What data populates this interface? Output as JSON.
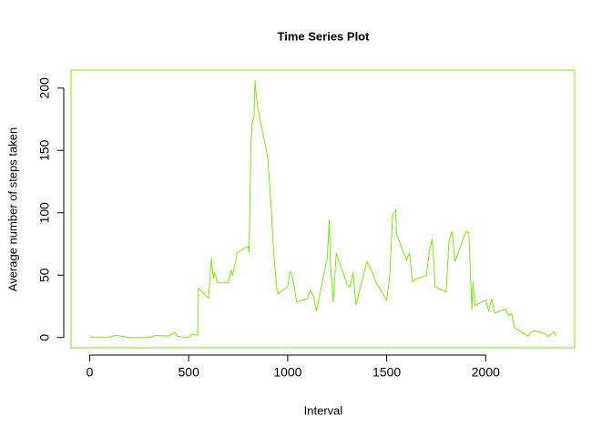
{
  "chart_data": {
    "type": "line",
    "title": "Time Series Plot",
    "x_label": "Interval",
    "y_label": "Average number of steps taken",
    "color": "#76EE00",
    "x": [
      0,
      10,
      20,
      30,
      40,
      55,
      100,
      130,
      200,
      230,
      300,
      330,
      400,
      430,
      445,
      500,
      515,
      530,
      545,
      550,
      600,
      610,
      615,
      625,
      630,
      645,
      700,
      715,
      720,
      730,
      745,
      800,
      805,
      815,
      820,
      830,
      835,
      840,
      850,
      900,
      915,
      930,
      945,
      950,
      1000,
      1010,
      1015,
      1030,
      1045,
      1100,
      1115,
      1130,
      1145,
      1200,
      1210,
      1215,
      1230,
      1245,
      1300,
      1315,
      1330,
      1345,
      1400,
      1415,
      1430,
      1445,
      1500,
      1515,
      1530,
      1545,
      1550,
      1600,
      1615,
      1630,
      1645,
      1700,
      1715,
      1730,
      1745,
      1800,
      1815,
      1830,
      1845,
      1900,
      1915,
      1930,
      1935,
      1945,
      2000,
      2015,
      2030,
      2045,
      2100,
      2115,
      2130,
      2145,
      2200,
      2215,
      2230,
      2245,
      2300,
      2315,
      2330,
      2345,
      2355
    ],
    "values": [
      1.7,
      0.1,
      0.1,
      0.5,
      0,
      0.2,
      0.3,
      1.8,
      0,
      0,
      0,
      1.6,
      1.2,
      4.1,
      0.8,
      0,
      2.4,
      2.1,
      1.8,
      39.5,
      31.5,
      53.8,
      63.5,
      47.1,
      52.1,
      44.2,
      44.0,
      54.5,
      49.9,
      55.7,
      67.9,
      73.4,
      68.0,
      157.5,
      171.2,
      177.3,
      206.2,
      195.9,
      183.4,
      143.5,
      108.1,
      66.2,
      38.8,
      35.0,
      40.6,
      51.8,
      52.7,
      44.3,
      28.3,
      31.3,
      38.0,
      33.0,
      21.0,
      63.9,
      94.8,
      61.2,
      28.4,
      67.5,
      42.7,
      40.2,
      52.4,
      25.9,
      60.8,
      56.4,
      51.2,
      44.6,
      30.0,
      48.5,
      98.7,
      102.1,
      83.0,
      62.1,
      67.8,
      44.7,
      46.6,
      49.8,
      68.9,
      78.9,
      40.7,
      36.2,
      77.7,
      85.3,
      61.0,
      84.9,
      84.0,
      22.0,
      44.8,
      25.5,
      30.2,
      21.3,
      31.3,
      19.6,
      22.7,
      17.6,
      19.2,
      8.0,
      2.4,
      1.1,
      4.6,
      5.3,
      3.1,
      0.7,
      2.6,
      4.7,
      1.1
    ],
    "xlim": [
      -94.2,
      2449.2
    ],
    "ylim": [
      -8.25,
      214.42
    ],
    "xticks": [
      0,
      500,
      1000,
      1500,
      2000
    ],
    "yticks": [
      0,
      50,
      100,
      150,
      200
    ]
  }
}
